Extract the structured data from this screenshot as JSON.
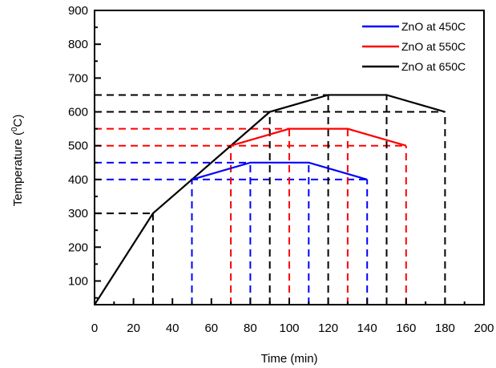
{
  "chart_data": {
    "type": "line",
    "xlabel": "Time (min)",
    "ylabel_main": "Temperature (",
    "ylabel_sup": "0",
    "ylabel_tail": "C)",
    "xlim": [
      0,
      200
    ],
    "ylim": [
      30,
      900
    ],
    "x_ticks": [
      0,
      20,
      40,
      60,
      80,
      100,
      120,
      140,
      160,
      180,
      200
    ],
    "y_ticks": [
      100,
      200,
      300,
      400,
      500,
      600,
      700,
      800,
      900
    ],
    "grid": false,
    "legend_position": "top-right",
    "series": [
      {
        "name": "ZnO at 450C",
        "color": "#0000ff",
        "points": [
          [
            50,
            400
          ],
          [
            80,
            450
          ],
          [
            110,
            450
          ],
          [
            140,
            400
          ]
        ],
        "guides": {
          "vertical": [
            50,
            80,
            110,
            140
          ],
          "horizontal": [
            [
              450,
              0,
              80
            ],
            [
              400,
              0,
              140
            ]
          ]
        }
      },
      {
        "name": "ZnO at 550C",
        "color": "#ff0000",
        "points": [
          [
            70,
            500
          ],
          [
            100,
            550
          ],
          [
            130,
            550
          ],
          [
            160,
            500
          ]
        ],
        "guides": {
          "vertical": [
            70,
            100,
            130,
            160
          ],
          "horizontal": [
            [
              550,
              0,
              100
            ],
            [
              500,
              0,
              160
            ]
          ]
        }
      },
      {
        "name": "ZnO at 650C",
        "color": "#000000",
        "points": [
          [
            0,
            30
          ],
          [
            30,
            300
          ],
          [
            50,
            400
          ],
          [
            70,
            500
          ],
          [
            90,
            600
          ],
          [
            120,
            650
          ],
          [
            150,
            650
          ],
          [
            180,
            600
          ]
        ],
        "guides": {
          "vertical": [
            30,
            90,
            120,
            150,
            180
          ],
          "horizontal": [
            [
              300,
              0,
              30
            ],
            [
              650,
              0,
              150
            ],
            [
              600,
              0,
              180
            ]
          ]
        }
      }
    ]
  }
}
